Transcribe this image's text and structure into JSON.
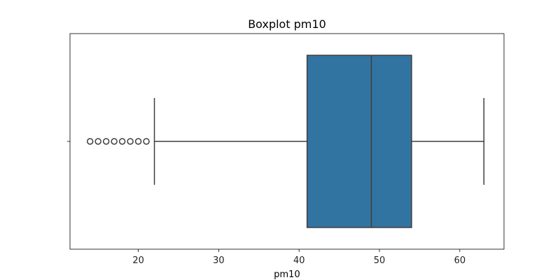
{
  "chart_data": {
    "type": "boxplot",
    "title": "Boxplot pm10",
    "xlabel": "pm10",
    "ylabel": "",
    "orientation": "horizontal",
    "xlim": [
      11.5,
      65.5
    ],
    "xticks": [
      20,
      30,
      40,
      50,
      60
    ],
    "xtick_labels": [
      "20",
      "30",
      "40",
      "50",
      "60"
    ],
    "grid": false,
    "stats": {
      "whisker_low": 22,
      "q1": 41,
      "median": 49,
      "q3": 54,
      "whisker_high": 63
    },
    "outliers": [
      14,
      15,
      16,
      17,
      18,
      19,
      20,
      21
    ],
    "colors": {
      "box_fill": "#3274a1",
      "line": "#3f3f3f"
    }
  }
}
